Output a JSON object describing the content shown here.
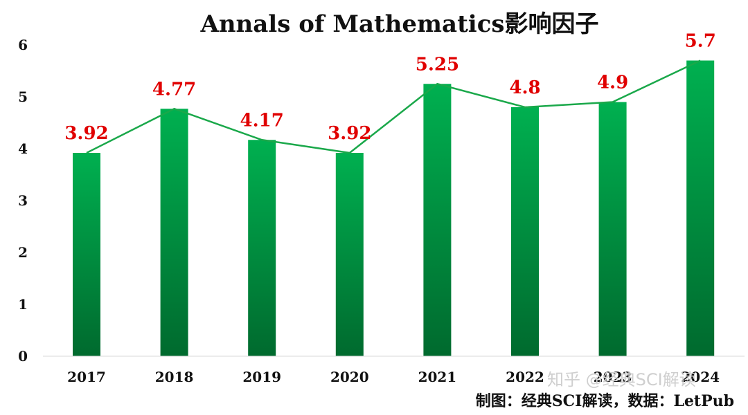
{
  "chart_data": {
    "type": "bar",
    "title": "Annals of Mathematics影响因子",
    "categories": [
      "2017",
      "2018",
      "2019",
      "2020",
      "2021",
      "2022",
      "2023",
      "2024"
    ],
    "values": [
      3.92,
      4.77,
      4.17,
      3.92,
      5.25,
      4.8,
      4.9,
      5.7
    ],
    "data_labels": [
      "3.92",
      "4.77",
      "4.17",
      "3.92",
      "5.25",
      "4.8",
      "4.9",
      "5.7"
    ],
    "ylim": [
      0,
      6
    ],
    "yticks": [
      "0",
      "1",
      "2",
      "3",
      "4",
      "5",
      "6"
    ],
    "xlabel": "",
    "ylabel": "",
    "grid": false,
    "trend_line": true,
    "colors": {
      "bar_top": "#00b050",
      "bar_bottom": "#006a2e",
      "line": "#1aa84a",
      "label": "#e00000"
    }
  },
  "source_note": "制图：经典SCI解读，数据：LetPub",
  "watermark": "知乎 @经典SCI解读"
}
